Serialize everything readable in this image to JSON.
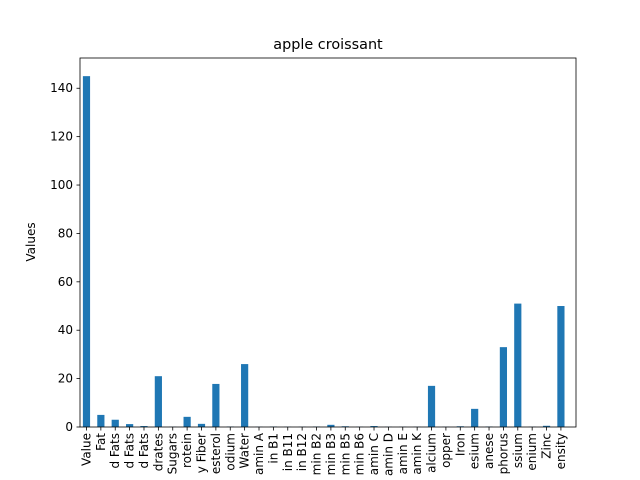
{
  "chart_data": {
    "type": "bar",
    "title": "apple croissant",
    "xlabel": "",
    "ylabel": "Values",
    "ylim": [
      0,
      152.5
    ],
    "yticks": [
      0,
      20,
      40,
      60,
      80,
      100,
      120,
      140
    ],
    "grid": false,
    "legend": "none",
    "bar_color": "#1f77b4",
    "categories": [
      "Value",
      "Fat",
      "d Fats",
      "d Fats",
      "d Fats",
      "drates",
      "Sugars",
      "rotein",
      "y Fiber",
      "esterol",
      "odium",
      "Water",
      "amin A",
      "in B1",
      "in B11",
      "in B12",
      "min B2",
      "min B3",
      "min B5",
      "min B6",
      "amin C",
      "amin D",
      "amin E",
      "amin K",
      "alcium",
      "opper",
      "Iron",
      "esium",
      "anese",
      "phorus",
      "ssium",
      "enium",
      "Zinc",
      "ensity"
    ],
    "values": [
      145,
      5,
      3,
      1.2,
      0.4,
      21,
      0.1,
      4.2,
      1.3,
      17.8,
      0.2,
      26,
      0.1,
      0.2,
      0.1,
      0.1,
      0.2,
      0.9,
      0.3,
      0.1,
      0.4,
      0.1,
      0.1,
      0.1,
      17,
      0.1,
      0.3,
      7.5,
      0.2,
      33,
      51,
      0.1,
      0.5,
      50
    ]
  }
}
